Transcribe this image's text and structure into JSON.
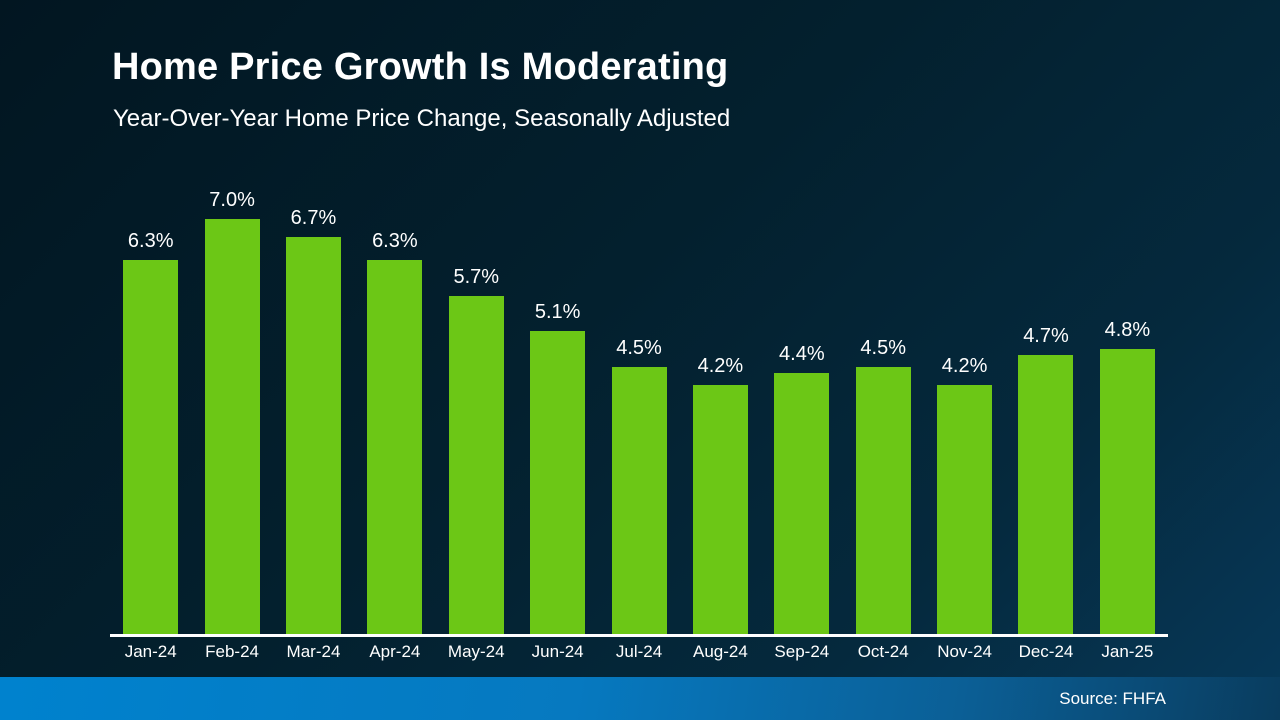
{
  "header": {
    "title": "Home Price Growth Is Moderating",
    "subtitle": "Year-Over-Year Home Price Change, Seasonally Adjusted"
  },
  "chart_data": {
    "type": "bar",
    "title": "Home Price Growth Is Moderating",
    "subtitle": "Year-Over-Year Home Price Change, Seasonally Adjusted",
    "categories": [
      "Jan-24",
      "Feb-24",
      "Mar-24",
      "Apr-24",
      "May-24",
      "Jun-24",
      "Jul-24",
      "Aug-24",
      "Sep-24",
      "Oct-24",
      "Nov-24",
      "Dec-24",
      "Jan-25"
    ],
    "values": [
      6.3,
      7.0,
      6.7,
      6.3,
      5.7,
      5.1,
      4.5,
      4.2,
      4.4,
      4.5,
      4.2,
      4.7,
      4.8
    ],
    "value_labels": [
      "6.3%",
      "7.0%",
      "6.7%",
      "6.3%",
      "5.7%",
      "5.1%",
      "4.5%",
      "4.2%",
      "4.4%",
      "4.5%",
      "4.2%",
      "4.7%",
      "4.8%"
    ],
    "xlabel": "",
    "ylabel": "",
    "ylim": [
      0,
      7.5
    ],
    "grid": false,
    "legend": false,
    "data_labels": true,
    "bar_color": "#6cc716"
  },
  "footer": {
    "source": "Source: FHFA"
  },
  "colors": {
    "background_top": "#021621",
    "background_bottom": "#06395a",
    "bar": "#6cc716",
    "axis_line": "#ffffff",
    "text": "#ffffff",
    "footer_left": "#0082ce",
    "footer_right": "#093c5e"
  }
}
